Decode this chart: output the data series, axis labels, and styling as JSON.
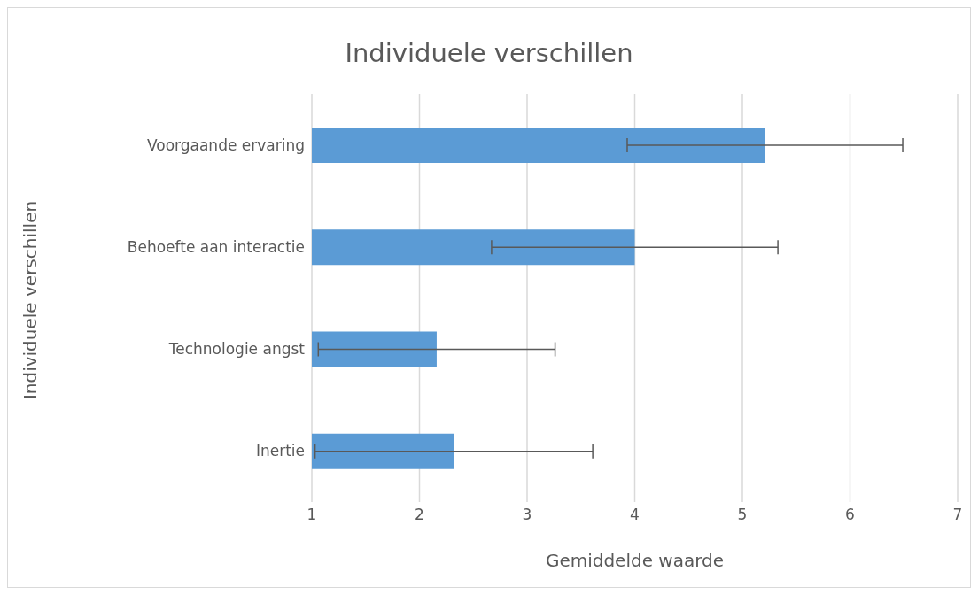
{
  "chart_data": {
    "type": "bar",
    "orientation": "horizontal",
    "title": "Individuele verschillen",
    "xlabel": "Gemiddelde waarde",
    "ylabel": "Individuele verschillen",
    "categories": [
      "Voorgaande ervaring",
      "Behoefte aan interactie",
      "Technologie angst",
      "Inertie"
    ],
    "values": [
      5.21,
      4.0,
      2.16,
      2.32
    ],
    "errors": [
      1.28,
      1.33,
      1.1,
      1.29
    ],
    "color": "#5b9bd5",
    "xlim": [
      1,
      7
    ],
    "xticks": [
      1,
      2,
      3,
      4,
      5,
      6,
      7
    ],
    "grid": "x"
  }
}
